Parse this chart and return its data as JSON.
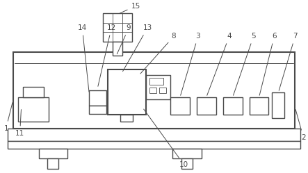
{
  "bg_color": "#ffffff",
  "line_color": "#4a4a4a",
  "fig_width": 4.43,
  "fig_height": 2.49,
  "dpi": 100
}
